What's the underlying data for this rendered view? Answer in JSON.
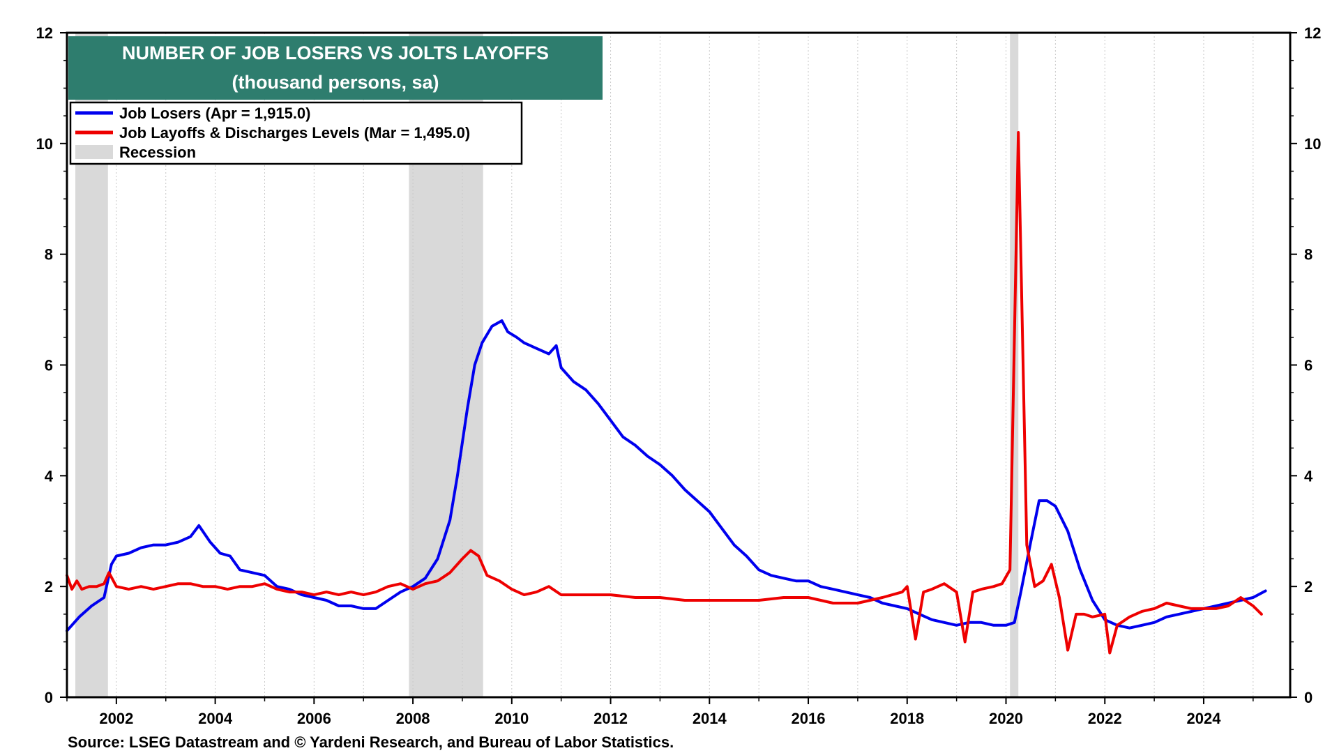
{
  "chart_data": {
    "type": "line",
    "title": "NUMBER OF JOB LOSERS VS JOLTS LAYOFFS",
    "subtitle": "(thousand persons, sa)",
    "source": "Source: LSEG Datastream and © Yardeni Research, and Bureau of Labor Statistics.",
    "xlim": [
      2001.0,
      2025.75
    ],
    "ylim": [
      0,
      12
    ],
    "x_ticks": [
      2002,
      2004,
      2006,
      2008,
      2010,
      2012,
      2014,
      2016,
      2018,
      2020,
      2022,
      2024
    ],
    "x_tick_labels": [
      "2002",
      "2004",
      "2006",
      "2008",
      "2010",
      "2012",
      "2014",
      "2016",
      "2018",
      "2020",
      "2022",
      "2024"
    ],
    "y_ticks": [
      0,
      2,
      4,
      6,
      8,
      10,
      12
    ],
    "y_tick_labels": [
      "0",
      "2",
      "4",
      "6",
      "8",
      "10",
      "12"
    ],
    "legend": [
      {
        "label": "Job Losers (Apr = 1,915.0)",
        "color": "#0000ee",
        "kind": "line"
      },
      {
        "label": "Job Layoffs & Discharges Levels (Mar = 1,495.0)",
        "color": "#ee0000",
        "kind": "line"
      },
      {
        "label": "Recession",
        "color": "#d9d9d9",
        "kind": "box"
      }
    ],
    "recessions": [
      [
        2001.17,
        2001.83
      ],
      [
        2007.92,
        2009.42
      ],
      [
        2020.08,
        2020.25
      ]
    ],
    "series": [
      {
        "name": "Job Losers",
        "color": "#0000ee",
        "x": [
          2001.0,
          2001.25,
          2001.5,
          2001.75,
          2001.9,
          2002.0,
          2002.25,
          2002.5,
          2002.75,
          2003.0,
          2003.25,
          2003.5,
          2003.67,
          2003.9,
          2004.1,
          2004.3,
          2004.5,
          2004.75,
          2005.0,
          2005.25,
          2005.5,
          2005.75,
          2006.0,
          2006.25,
          2006.5,
          2006.75,
          2007.0,
          2007.25,
          2007.5,
          2007.75,
          2008.0,
          2008.25,
          2008.5,
          2008.75,
          2008.9,
          2009.1,
          2009.25,
          2009.4,
          2009.6,
          2009.8,
          2009.92,
          2010.1,
          2010.25,
          2010.5,
          2010.75,
          2010.9,
          2011.0,
          2011.25,
          2011.5,
          2011.75,
          2012.0,
          2012.25,
          2012.5,
          2012.75,
          2013.0,
          2013.25,
          2013.5,
          2013.75,
          2014.0,
          2014.25,
          2014.5,
          2014.75,
          2015.0,
          2015.25,
          2015.5,
          2015.75,
          2016.0,
          2016.25,
          2016.5,
          2016.75,
          2017.0,
          2017.25,
          2017.5,
          2017.75,
          2018.0,
          2018.25,
          2018.5,
          2018.75,
          2019.0,
          2019.25,
          2019.5,
          2019.75,
          2020.0,
          2020.17,
          2020.3,
          2020.5,
          2020.67,
          2020.83,
          2021.0,
          2021.25,
          2021.5,
          2021.75,
          2022.0,
          2022.25,
          2022.5,
          2022.75,
          2023.0,
          2023.25,
          2023.5,
          2023.75,
          2024.0,
          2024.25,
          2024.5,
          2024.75,
          2025.0,
          2025.25
        ],
        "y": [
          1.2,
          1.45,
          1.65,
          1.8,
          2.4,
          2.55,
          2.6,
          2.7,
          2.75,
          2.75,
          2.8,
          2.9,
          3.1,
          2.8,
          2.6,
          2.55,
          2.3,
          2.25,
          2.2,
          2.0,
          1.95,
          1.85,
          1.8,
          1.75,
          1.65,
          1.65,
          1.6,
          1.6,
          1.75,
          1.9,
          2.0,
          2.15,
          2.5,
          3.2,
          4.0,
          5.2,
          6.0,
          6.4,
          6.7,
          6.8,
          6.6,
          6.5,
          6.4,
          6.3,
          6.2,
          6.35,
          5.95,
          5.7,
          5.55,
          5.3,
          5.0,
          4.7,
          4.55,
          4.35,
          4.2,
          4.0,
          3.75,
          3.55,
          3.35,
          3.05,
          2.75,
          2.55,
          2.3,
          2.2,
          2.15,
          2.1,
          2.1,
          2.0,
          1.95,
          1.9,
          1.85,
          1.8,
          1.7,
          1.65,
          1.6,
          1.5,
          1.4,
          1.35,
          1.3,
          1.35,
          1.35,
          1.3,
          1.3,
          1.35,
          1.9,
          2.8,
          3.55,
          3.55,
          3.45,
          3.0,
          2.3,
          1.75,
          1.4,
          1.3,
          1.25,
          1.3,
          1.35,
          1.45,
          1.5,
          1.55,
          1.6,
          1.65,
          1.7,
          1.75,
          1.8,
          1.92
        ]
      },
      {
        "name": "Job Layoffs & Discharges Levels",
        "color": "#ee0000",
        "x": [
          2001.0,
          2001.1,
          2001.2,
          2001.3,
          2001.45,
          2001.6,
          2001.75,
          2001.85,
          2002.0,
          2002.25,
          2002.5,
          2002.75,
          2003.0,
          2003.25,
          2003.5,
          2003.75,
          2004.0,
          2004.25,
          2004.5,
          2004.75,
          2005.0,
          2005.25,
          2005.5,
          2005.75,
          2006.0,
          2006.25,
          2006.5,
          2006.75,
          2007.0,
          2007.25,
          2007.5,
          2007.75,
          2008.0,
          2008.25,
          2008.5,
          2008.75,
          2009.0,
          2009.17,
          2009.33,
          2009.5,
          2009.75,
          2010.0,
          2010.25,
          2010.5,
          2010.75,
          2011.0,
          2011.5,
          2012.0,
          2012.5,
          2013.0,
          2013.5,
          2014.0,
          2014.5,
          2015.0,
          2015.5,
          2016.0,
          2016.5,
          2017.0,
          2017.5,
          2017.9,
          2018.0,
          2018.17,
          2018.33,
          2018.5,
          2018.75,
          2019.0,
          2019.17,
          2019.33,
          2019.5,
          2019.75,
          2019.92,
          2020.08,
          2020.25,
          2020.42,
          2020.58,
          2020.75,
          2020.92,
          2021.08,
          2021.25,
          2021.42,
          2021.58,
          2021.75,
          2022.0,
          2022.1,
          2022.25,
          2022.5,
          2022.75,
          2023.0,
          2023.25,
          2023.5,
          2023.75,
          2024.0,
          2024.25,
          2024.5,
          2024.75,
          2025.0,
          2025.17
        ],
        "y": [
          2.2,
          1.95,
          2.1,
          1.95,
          2.0,
          2.0,
          2.05,
          2.25,
          2.0,
          1.95,
          2.0,
          1.95,
          2.0,
          2.05,
          2.05,
          2.0,
          2.0,
          1.95,
          2.0,
          2.0,
          2.05,
          1.95,
          1.9,
          1.9,
          1.85,
          1.9,
          1.85,
          1.9,
          1.85,
          1.9,
          2.0,
          2.05,
          1.95,
          2.05,
          2.1,
          2.25,
          2.5,
          2.65,
          2.55,
          2.2,
          2.1,
          1.95,
          1.85,
          1.9,
          2.0,
          1.85,
          1.85,
          1.85,
          1.8,
          1.8,
          1.75,
          1.75,
          1.75,
          1.75,
          1.8,
          1.8,
          1.7,
          1.7,
          1.8,
          1.9,
          2.0,
          1.05,
          1.9,
          1.95,
          2.05,
          1.9,
          1.0,
          1.9,
          1.95,
          2.0,
          2.05,
          2.3,
          10.2,
          2.75,
          2.0,
          2.1,
          2.4,
          1.8,
          0.85,
          1.5,
          1.5,
          1.45,
          1.5,
          0.8,
          1.3,
          1.45,
          1.55,
          1.6,
          1.7,
          1.65,
          1.6,
          1.6,
          1.6,
          1.65,
          1.8,
          1.65,
          1.5
        ]
      }
    ]
  }
}
